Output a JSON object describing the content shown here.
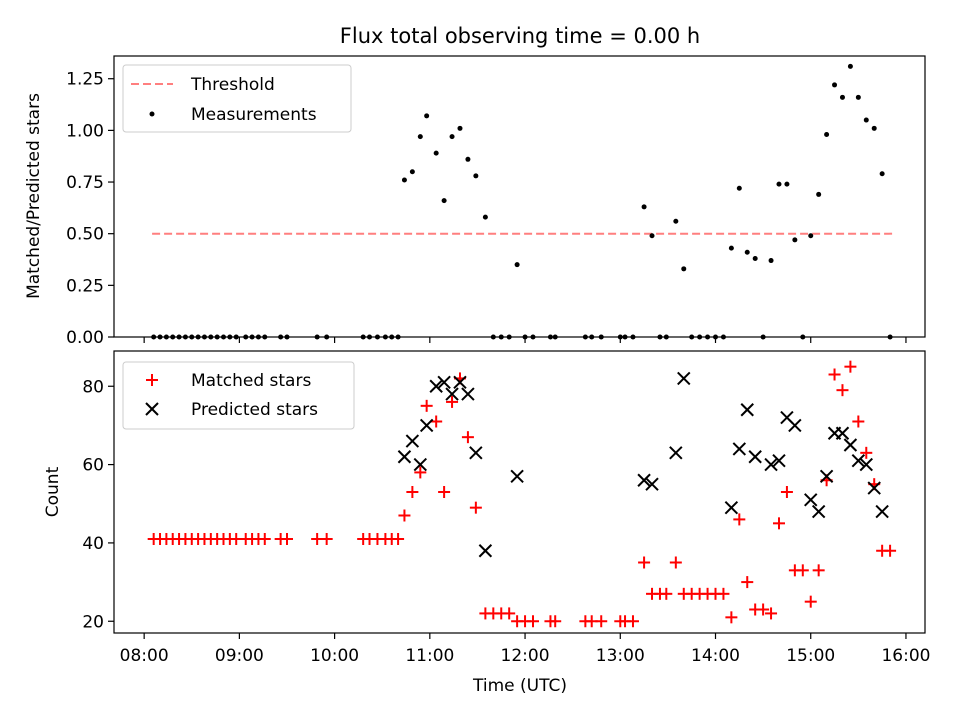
{
  "figure": {
    "title": "Flux total observing time = 0.00 h",
    "xlabel": "Time (UTC)"
  },
  "x_ticks": [
    "08:00",
    "09:00",
    "10:00",
    "11:00",
    "12:00",
    "13:00",
    "14:00",
    "15:00",
    "16:00"
  ],
  "colors": {
    "threshold": "#ff7f7f",
    "measurements": "#000000",
    "matched": "#ff0000",
    "predicted": "#000000"
  },
  "chart_data": [
    {
      "type": "scatter",
      "ylabel": "Matched/Predicted stars",
      "xlim": [
        "07:41",
        "16:12"
      ],
      "ylim": [
        0,
        1.36
      ],
      "yticks": [
        "0.00",
        "0.25",
        "0.50",
        "0.75",
        "1.00",
        "1.25"
      ],
      "legend_placement": "top-left",
      "threshold": {
        "name": "Threshold",
        "y": 0.5,
        "x": [
          "08:05",
          "15:52"
        ]
      },
      "series": [
        {
          "name": "Measurements",
          "points": [
            [
              "08:06",
              0
            ],
            [
              "08:10",
              0
            ],
            [
              "08:14",
              0
            ],
            [
              "08:18",
              0
            ],
            [
              "08:22",
              0
            ],
            [
              "08:26",
              0
            ],
            [
              "08:30",
              0
            ],
            [
              "08:34",
              0
            ],
            [
              "08:38",
              0
            ],
            [
              "08:42",
              0
            ],
            [
              "08:46",
              0
            ],
            [
              "08:50",
              0
            ],
            [
              "08:54",
              0
            ],
            [
              "08:58",
              0
            ],
            [
              "09:04",
              0
            ],
            [
              "09:08",
              0
            ],
            [
              "09:12",
              0
            ],
            [
              "09:16",
              0
            ],
            [
              "09:26",
              0
            ],
            [
              "09:30",
              0
            ],
            [
              "09:49",
              0
            ],
            [
              "09:55",
              0
            ],
            [
              "10:18",
              0
            ],
            [
              "10:22",
              0
            ],
            [
              "10:27",
              0
            ],
            [
              "10:32",
              0
            ],
            [
              "10:36",
              0
            ],
            [
              "10:40",
              0
            ],
            [
              "10:44",
              0.76
            ],
            [
              "10:49",
              0.8
            ],
            [
              "10:54",
              0.97
            ],
            [
              "10:58",
              1.07
            ],
            [
              "11:04",
              0.89
            ],
            [
              "11:09",
              0.66
            ],
            [
              "11:14",
              0.97
            ],
            [
              "11:19",
              1.01
            ],
            [
              "11:24",
              0.86
            ],
            [
              "11:29",
              0.78
            ],
            [
              "11:35",
              0.58
            ],
            [
              "11:40",
              0
            ],
            [
              "11:45",
              0
            ],
            [
              "11:50",
              0
            ],
            [
              "11:55",
              0.35
            ],
            [
              "12:00",
              0
            ],
            [
              "12:05",
              0
            ],
            [
              "12:16",
              0
            ],
            [
              "12:19",
              0
            ],
            [
              "12:38",
              0
            ],
            [
              "12:42",
              0
            ],
            [
              "12:48",
              0
            ],
            [
              "13:00",
              0
            ],
            [
              "13:03",
              0
            ],
            [
              "13:08",
              0
            ],
            [
              "13:15",
              0.63
            ],
            [
              "13:20",
              0.49
            ],
            [
              "13:25",
              0
            ],
            [
              "13:29",
              0
            ],
            [
              "13:35",
              0.56
            ],
            [
              "13:40",
              0.33
            ],
            [
              "13:45",
              0
            ],
            [
              "13:50",
              0
            ],
            [
              "13:55",
              0
            ],
            [
              "14:00",
              0
            ],
            [
              "14:05",
              0
            ],
            [
              "14:10",
              0.43
            ],
            [
              "14:15",
              0.72
            ],
            [
              "14:20",
              0.41
            ],
            [
              "14:25",
              0.38
            ],
            [
              "14:30",
              0
            ],
            [
              "14:35",
              0.37
            ],
            [
              "14:40",
              0.74
            ],
            [
              "14:45",
              0.74
            ],
            [
              "14:50",
              0.47
            ],
            [
              "14:55",
              0
            ],
            [
              "15:00",
              0.49
            ],
            [
              "15:05",
              0.69
            ],
            [
              "15:10",
              0.98
            ],
            [
              "15:15",
              1.22
            ],
            [
              "15:20",
              1.16
            ],
            [
              "15:25",
              1.31
            ],
            [
              "15:30",
              1.16
            ],
            [
              "15:35",
              1.05
            ],
            [
              "15:40",
              1.01
            ],
            [
              "15:45",
              0.79
            ],
            [
              "15:50",
              0
            ]
          ]
        }
      ]
    },
    {
      "type": "scatter",
      "ylabel": "Count",
      "xlim": [
        "07:41",
        "16:12"
      ],
      "ylim": [
        17,
        89
      ],
      "yticks": [
        "20",
        "40",
        "60",
        "80"
      ],
      "legend_placement": "top-left",
      "series": [
        {
          "name": "Matched stars",
          "marker": "+",
          "points": [
            [
              "08:06",
              41
            ],
            [
              "08:10",
              41
            ],
            [
              "08:14",
              41
            ],
            [
              "08:18",
              41
            ],
            [
              "08:22",
              41
            ],
            [
              "08:26",
              41
            ],
            [
              "08:30",
              41
            ],
            [
              "08:34",
              41
            ],
            [
              "08:38",
              41
            ],
            [
              "08:42",
              41
            ],
            [
              "08:46",
              41
            ],
            [
              "08:50",
              41
            ],
            [
              "08:54",
              41
            ],
            [
              "08:58",
              41
            ],
            [
              "09:04",
              41
            ],
            [
              "09:08",
              41
            ],
            [
              "09:12",
              41
            ],
            [
              "09:16",
              41
            ],
            [
              "09:26",
              41
            ],
            [
              "09:30",
              41
            ],
            [
              "09:49",
              41
            ],
            [
              "09:55",
              41
            ],
            [
              "10:18",
              41
            ],
            [
              "10:22",
              41
            ],
            [
              "10:27",
              41
            ],
            [
              "10:32",
              41
            ],
            [
              "10:36",
              41
            ],
            [
              "10:40",
              41
            ],
            [
              "10:44",
              47
            ],
            [
              "10:49",
              53
            ],
            [
              "10:54",
              58
            ],
            [
              "10:58",
              75
            ],
            [
              "11:04",
              71
            ],
            [
              "11:09",
              53
            ],
            [
              "11:14",
              76
            ],
            [
              "11:19",
              82
            ],
            [
              "11:24",
              67
            ],
            [
              "11:29",
              49
            ],
            [
              "11:35",
              22
            ],
            [
              "11:40",
              22
            ],
            [
              "11:45",
              22
            ],
            [
              "11:50",
              22
            ],
            [
              "11:55",
              20
            ],
            [
              "12:00",
              20
            ],
            [
              "12:05",
              20
            ],
            [
              "12:16",
              20
            ],
            [
              "12:19",
              20
            ],
            [
              "12:38",
              20
            ],
            [
              "12:42",
              20
            ],
            [
              "12:48",
              20
            ],
            [
              "13:00",
              20
            ],
            [
              "13:03",
              20
            ],
            [
              "13:08",
              20
            ],
            [
              "13:15",
              35
            ],
            [
              "13:20",
              27
            ],
            [
              "13:25",
              27
            ],
            [
              "13:29",
              27
            ],
            [
              "13:35",
              35
            ],
            [
              "13:40",
              27
            ],
            [
              "13:45",
              27
            ],
            [
              "13:50",
              27
            ],
            [
              "13:55",
              27
            ],
            [
              "14:00",
              27
            ],
            [
              "14:05",
              27
            ],
            [
              "14:10",
              21
            ],
            [
              "14:15",
              46
            ],
            [
              "14:20",
              30
            ],
            [
              "14:25",
              23
            ],
            [
              "14:30",
              23
            ],
            [
              "14:35",
              22
            ],
            [
              "14:40",
              45
            ],
            [
              "14:45",
              53
            ],
            [
              "14:50",
              33
            ],
            [
              "14:55",
              33
            ],
            [
              "15:00",
              25
            ],
            [
              "15:05",
              33
            ],
            [
              "15:10",
              56
            ],
            [
              "15:15",
              83
            ],
            [
              "15:20",
              79
            ],
            [
              "15:25",
              85
            ],
            [
              "15:30",
              71
            ],
            [
              "15:35",
              63
            ],
            [
              "15:40",
              55
            ],
            [
              "15:45",
              38
            ],
            [
              "15:50",
              38
            ]
          ]
        },
        {
          "name": "Predicted stars",
          "marker": "x",
          "points": [
            [
              "10:44",
              62
            ],
            [
              "10:49",
              66
            ],
            [
              "10:54",
              60
            ],
            [
              "10:58",
              70
            ],
            [
              "11:04",
              80
            ],
            [
              "11:09",
              81
            ],
            [
              "11:14",
              78
            ],
            [
              "11:19",
              81
            ],
            [
              "11:24",
              78
            ],
            [
              "11:29",
              63
            ],
            [
              "11:35",
              38
            ],
            [
              "11:55",
              57
            ],
            [
              "13:15",
              56
            ],
            [
              "13:20",
              55
            ],
            [
              "13:35",
              63
            ],
            [
              "13:40",
              82
            ],
            [
              "14:10",
              49
            ],
            [
              "14:15",
              64
            ],
            [
              "14:20",
              74
            ],
            [
              "14:25",
              62
            ],
            [
              "14:35",
              60
            ],
            [
              "14:40",
              61
            ],
            [
              "14:45",
              72
            ],
            [
              "14:50",
              70
            ],
            [
              "15:00",
              51
            ],
            [
              "15:05",
              48
            ],
            [
              "15:10",
              57
            ],
            [
              "15:15",
              68
            ],
            [
              "15:20",
              68
            ],
            [
              "15:25",
              65
            ],
            [
              "15:30",
              61
            ],
            [
              "15:35",
              60
            ],
            [
              "15:40",
              54
            ],
            [
              "15:45",
              48
            ]
          ]
        }
      ]
    }
  ]
}
